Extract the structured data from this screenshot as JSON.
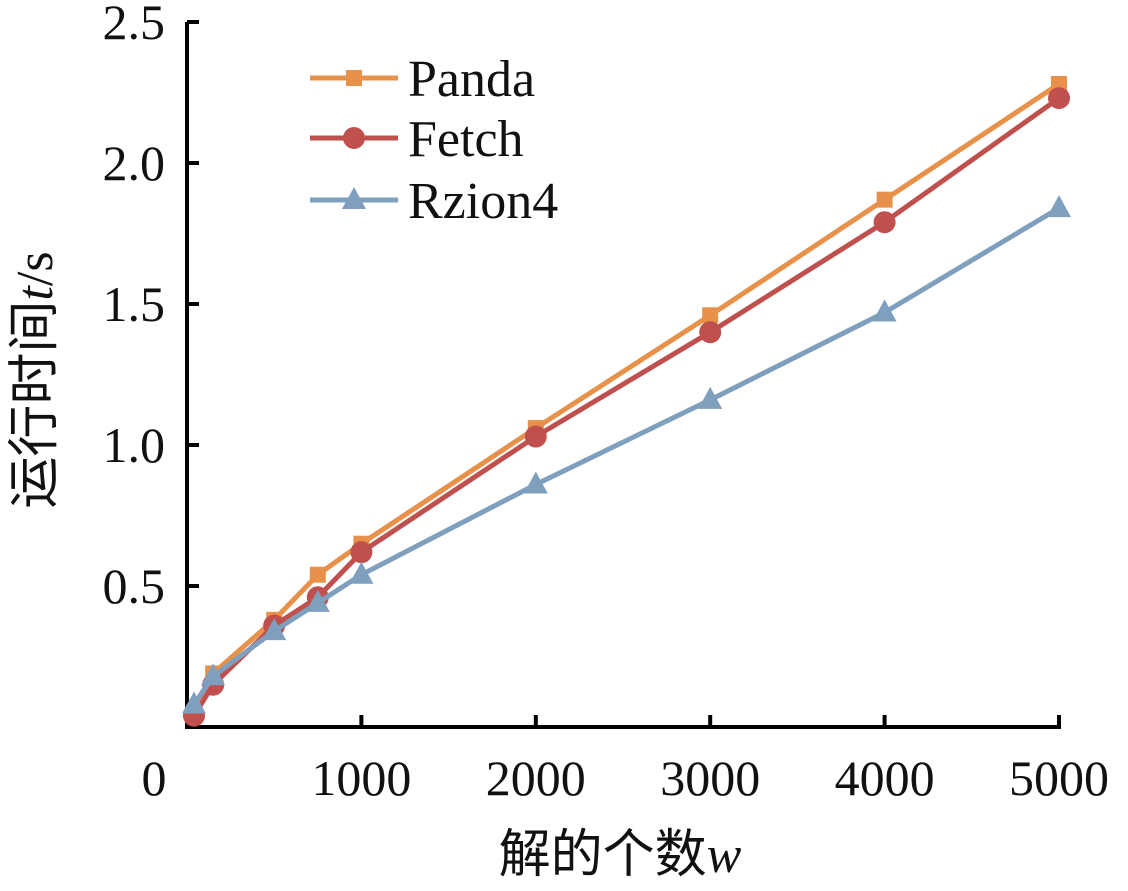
{
  "chart_data": {
    "type": "line",
    "title": "",
    "xlabel": "解的个数",
    "xlabel_var": "w",
    "ylabel": "运行时间",
    "ylabel_var": "t",
    "ylabel_unit": "/s",
    "xlim": [
      0,
      5000
    ],
    "ylim": [
      0,
      2.5
    ],
    "xticks": [
      0,
      1000,
      2000,
      3000,
      4000,
      5000
    ],
    "xtick_labels": [
      "0",
      "1000",
      "2000",
      "3000",
      "4000",
      "5000"
    ],
    "yticks": [
      0.5,
      1.0,
      1.5,
      2.0,
      2.5
    ],
    "ytick_labels": [
      "0.5",
      "1.0",
      "1.5",
      "2.0",
      "2.5"
    ],
    "grid": false,
    "legend_position": "top-left",
    "series": [
      {
        "name": "Panda",
        "color": "#E8914A",
        "marker": "square",
        "x": [
          40,
          150,
          500,
          750,
          1000,
          2000,
          3000,
          4000,
          5000
        ],
        "y": [
          0.05,
          0.19,
          0.38,
          0.54,
          0.65,
          1.06,
          1.46,
          1.87,
          2.28
        ]
      },
      {
        "name": "Fetch",
        "color": "#C0504D",
        "marker": "circle",
        "x": [
          40,
          150,
          500,
          750,
          1000,
          2000,
          3000,
          4000,
          5000
        ],
        "y": [
          0.04,
          0.15,
          0.36,
          0.46,
          0.62,
          1.03,
          1.4,
          1.79,
          2.23
        ]
      },
      {
        "name": "Rzion4",
        "color": "#7F9FBF",
        "marker": "triangle",
        "x": [
          40,
          150,
          500,
          750,
          1000,
          2000,
          3000,
          4000,
          5000
        ],
        "y": [
          0.08,
          0.18,
          0.34,
          0.44,
          0.54,
          0.86,
          1.16,
          1.47,
          1.84
        ]
      }
    ]
  }
}
